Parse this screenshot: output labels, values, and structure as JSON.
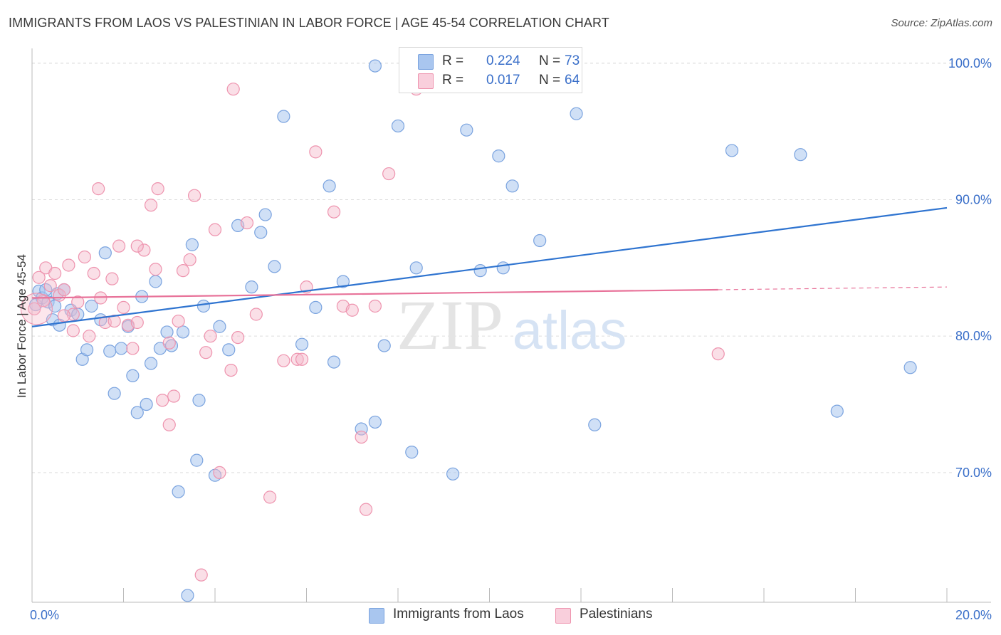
{
  "title": "IMMIGRANTS FROM LAOS VS PALESTINIAN IN LABOR FORCE | AGE 45-54 CORRELATION CHART",
  "source": "Source: ZipAtlas.com",
  "watermark": {
    "zip": "ZIP",
    "atlas": "atlas"
  },
  "colors": {
    "blue_fill": "#a9c6ef",
    "blue_stroke": "#7aa3df",
    "blue_line": "#2f74d0",
    "pink_fill": "#f5b7c9",
    "pink_stroke": "#ee93ae",
    "pink_line": "#e8739a",
    "label_blue": "#3a6fc9",
    "grid": "#dddddd"
  },
  "legend_top": [
    {
      "r_label": "R =",
      "r_value": "0.224",
      "n_label": "N =",
      "n_value": "73"
    },
    {
      "r_label": "R =",
      "r_value": "0.017",
      "n_label": "N =",
      "n_value": "64"
    }
  ],
  "chart_data": {
    "type": "scatter",
    "title": "IMMIGRANTS FROM LAOS VS PALESTINIAN IN LABOR FORCE | AGE 45-54 CORRELATION CHART",
    "xlabel": "",
    "ylabel": "In Labor Force | Age 45-54",
    "xlim": [
      0,
      20
    ],
    "ylim": [
      60.5,
      101.5
    ],
    "x_tick_labels": [
      "0.0%",
      "20.0%"
    ],
    "y_ticks": [
      70,
      80,
      90,
      100
    ],
    "y_tick_labels": [
      "70.0%",
      "80.0%",
      "90.0%",
      "100.0%"
    ],
    "grid": true,
    "legend_position": "top-center and bottom",
    "series": [
      {
        "name": "Immigrants from Laos",
        "color": "#a9c6ef",
        "trend": {
          "x": [
            0,
            20
          ],
          "y": [
            80.7,
            89.4
          ]
        },
        "points": [
          [
            0.08,
            82.3
          ],
          [
            0.15,
            83.3
          ],
          [
            0.22,
            82.8
          ],
          [
            0.3,
            83.4
          ],
          [
            0.35,
            82.5
          ],
          [
            0.45,
            81.2
          ],
          [
            0.5,
            82.2
          ],
          [
            0.55,
            83.1
          ],
          [
            0.6,
            80.8
          ],
          [
            0.7,
            83.4
          ],
          [
            0.85,
            81.9
          ],
          [
            1.0,
            81.6
          ],
          [
            1.1,
            78.3
          ],
          [
            1.2,
            79.0
          ],
          [
            1.5,
            81.2
          ],
          [
            1.7,
            78.9
          ],
          [
            1.8,
            75.8
          ],
          [
            1.95,
            79.1
          ],
          [
            2.1,
            80.7
          ],
          [
            2.2,
            77.1
          ],
          [
            2.3,
            74.4
          ],
          [
            2.4,
            82.9
          ],
          [
            2.5,
            75.0
          ],
          [
            2.6,
            78.0
          ],
          [
            2.7,
            84.0
          ],
          [
            2.8,
            79.1
          ],
          [
            2.95,
            80.3
          ],
          [
            3.05,
            79.3
          ],
          [
            3.2,
            68.6
          ],
          [
            3.3,
            80.3
          ],
          [
            3.5,
            86.7
          ],
          [
            3.6,
            70.9
          ],
          [
            3.65,
            75.3
          ],
          [
            3.75,
            82.2
          ],
          [
            4.0,
            69.8
          ],
          [
            4.1,
            80.7
          ],
          [
            4.3,
            79.0
          ],
          [
            4.5,
            88.1
          ],
          [
            4.8,
            83.6
          ],
          [
            5.0,
            87.6
          ],
          [
            5.1,
            88.9
          ],
          [
            5.3,
            85.1
          ],
          [
            5.5,
            96.1
          ],
          [
            5.9,
            79.4
          ],
          [
            6.2,
            82.1
          ],
          [
            6.5,
            91.0
          ],
          [
            6.6,
            78.1
          ],
          [
            6.8,
            84.0
          ],
          [
            7.2,
            73.2
          ],
          [
            7.5,
            99.8
          ],
          [
            7.5,
            73.7
          ],
          [
            7.7,
            79.3
          ],
          [
            8.0,
            95.4
          ],
          [
            8.3,
            71.5
          ],
          [
            8.4,
            85.0
          ],
          [
            8.6,
            99.8
          ],
          [
            8.9,
            99.8
          ],
          [
            9.2,
            69.9
          ],
          [
            9.5,
            95.1
          ],
          [
            9.8,
            84.8
          ],
          [
            10.2,
            93.2
          ],
          [
            10.3,
            85.0
          ],
          [
            10.5,
            91.0
          ],
          [
            11.1,
            87.0
          ],
          [
            11.9,
            96.3
          ],
          [
            12.3,
            73.5
          ],
          [
            15.3,
            93.6
          ],
          [
            16.8,
            93.3
          ],
          [
            17.6,
            74.5
          ],
          [
            19.2,
            77.7
          ],
          [
            1.6,
            86.1
          ],
          [
            3.4,
            61.0
          ],
          [
            1.3,
            82.2
          ]
        ]
      },
      {
        "name": "Palestinians",
        "color": "#f5b7c9",
        "trend": {
          "x": [
            0,
            15
          ],
          "y": [
            82.8,
            83.4
          ],
          "dashed_to": {
            "x": 20,
            "y": 83.6
          }
        },
        "points": [
          [
            0.05,
            82.0
          ],
          [
            0.15,
            84.3
          ],
          [
            0.25,
            82.6
          ],
          [
            0.3,
            85.0
          ],
          [
            0.4,
            83.7
          ],
          [
            0.5,
            84.6
          ],
          [
            0.6,
            83.0
          ],
          [
            0.7,
            83.4
          ],
          [
            0.8,
            85.2
          ],
          [
            0.9,
            81.6
          ],
          [
            1.0,
            82.5
          ],
          [
            1.15,
            85.8
          ],
          [
            1.25,
            80.0
          ],
          [
            1.35,
            84.6
          ],
          [
            1.45,
            90.8
          ],
          [
            1.6,
            81.0
          ],
          [
            1.75,
            84.2
          ],
          [
            1.9,
            86.6
          ],
          [
            2.0,
            82.1
          ],
          [
            2.1,
            80.8
          ],
          [
            2.2,
            79.1
          ],
          [
            2.3,
            81.0
          ],
          [
            2.45,
            86.3
          ],
          [
            2.6,
            89.6
          ],
          [
            2.7,
            84.9
          ],
          [
            2.75,
            90.8
          ],
          [
            2.85,
            75.3
          ],
          [
            3.0,
            73.5
          ],
          [
            3.1,
            75.6
          ],
          [
            3.2,
            81.1
          ],
          [
            3.3,
            84.8
          ],
          [
            3.45,
            85.6
          ],
          [
            3.55,
            90.3
          ],
          [
            3.7,
            62.5
          ],
          [
            3.8,
            78.8
          ],
          [
            3.9,
            80.0
          ],
          [
            4.0,
            87.8
          ],
          [
            4.1,
            70.0
          ],
          [
            4.35,
            77.5
          ],
          [
            4.5,
            79.9
          ],
          [
            4.7,
            88.3
          ],
          [
            4.9,
            81.6
          ],
          [
            5.2,
            68.2
          ],
          [
            5.5,
            78.2
          ],
          [
            5.8,
            78.3
          ],
          [
            5.9,
            78.3
          ],
          [
            6.0,
            83.6
          ],
          [
            6.2,
            93.5
          ],
          [
            6.6,
            89.1
          ],
          [
            6.8,
            82.2
          ],
          [
            7.0,
            81.9
          ],
          [
            7.2,
            72.6
          ],
          [
            7.3,
            67.3
          ],
          [
            7.5,
            82.2
          ],
          [
            7.8,
            91.9
          ],
          [
            8.4,
            98.1
          ],
          [
            1.8,
            81.1
          ],
          [
            1.5,
            82.8
          ],
          [
            2.3,
            86.6
          ],
          [
            3.0,
            79.5
          ],
          [
            4.4,
            98.1
          ],
          [
            0.7,
            81.5
          ],
          [
            0.9,
            80.4
          ],
          [
            15.0,
            78.7
          ]
        ]
      }
    ]
  },
  "legend_bottom": [
    "Immigrants from Laos",
    "Palestinians"
  ]
}
